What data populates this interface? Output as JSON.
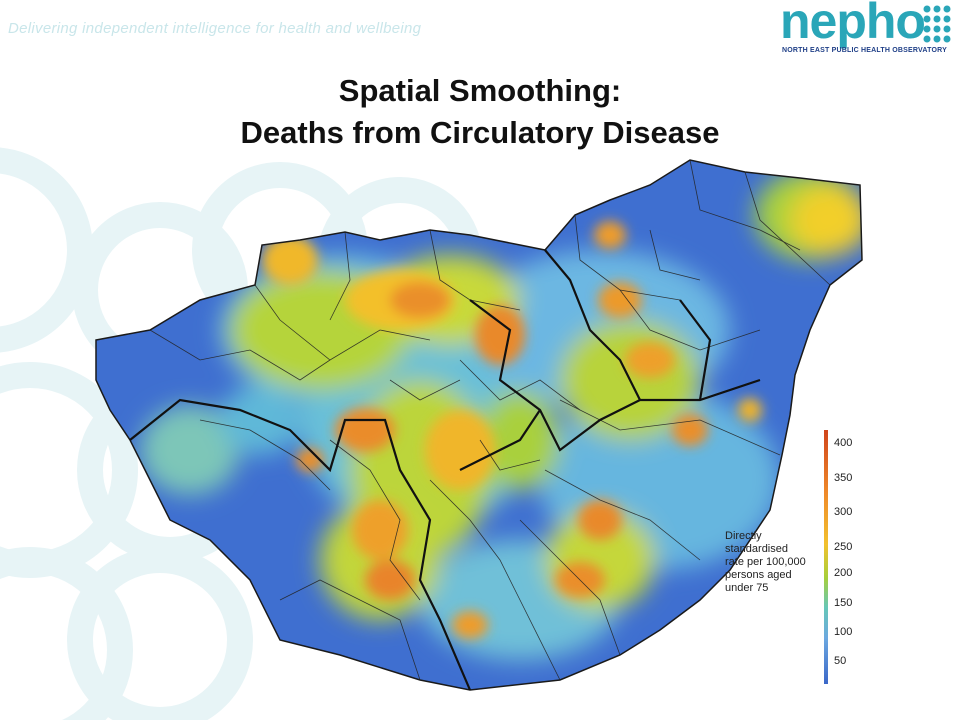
{
  "header": {
    "tagline": "Delivering independent intelligence for health and wellbeing",
    "logo": {
      "wordmark": "nepho",
      "subtitle_left": "NORTH EAST",
      "subtitle_right": "PUBLIC HEALTH OBSERVATORY"
    }
  },
  "title": {
    "line1": "Spatial Smoothing:",
    "line2": "Deaths from Circulatory Disease"
  },
  "legend": {
    "description": "Directly\nstandardised\nrate per 100,000\npersons aged\nunder 75",
    "ticks": [
      "400",
      "350",
      "300",
      "250",
      "200",
      "150",
      "100",
      "50"
    ],
    "colors": {
      "high": "#d0451c",
      "mid_high": "#ef8a2a",
      "mid": "#f2c12e",
      "mid_low": "#a7cf3a",
      "low": "#6ca8e0",
      "lowest": "#3b67c8"
    }
  },
  "colors": {
    "accent": "#2aa6b8",
    "brand_navy": "#1f3f87",
    "ring": "#e6f3f5"
  }
}
